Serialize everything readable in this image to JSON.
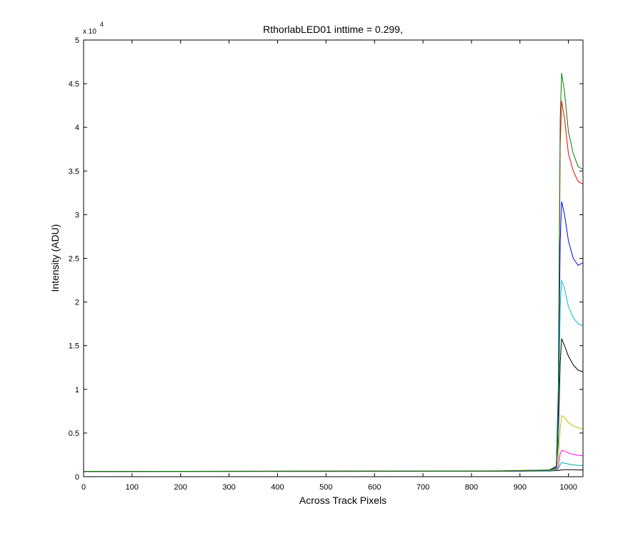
{
  "chart_data": {
    "type": "line",
    "title": "RthorlabLED01 inttime = 0.299,",
    "xlabel": "Across Track Pixels",
    "ylabel": "Intensity (ADU)",
    "y_exponent_label": "x 10",
    "y_exponent_power": "4",
    "xlim": [
      0,
      1030
    ],
    "ylim": [
      0,
      50000
    ],
    "x_ticks": [
      0,
      100,
      200,
      300,
      400,
      500,
      600,
      700,
      800,
      900,
      1000
    ],
    "x_tick_labels": [
      "0",
      "100",
      "200",
      "300",
      "400",
      "500",
      "600",
      "700",
      "800",
      "900",
      "1000"
    ],
    "y_ticks": [
      0,
      5000,
      10000,
      15000,
      20000,
      25000,
      30000,
      35000,
      40000,
      45000,
      50000
    ],
    "y_tick_labels": [
      "0",
      "0.5",
      "1",
      "1.5",
      "2",
      "2.5",
      "3",
      "3.5",
      "4",
      "4.5",
      "5"
    ],
    "grid": false,
    "legend": "none",
    "baseline": 600,
    "series": [
      {
        "color": "#000000",
        "x": [
          0,
          850,
          960,
          975,
          979,
          983,
          986,
          992,
          1000,
          1010,
          1020,
          1030
        ],
        "y": [
          600,
          610,
          650,
          700,
          700,
          750,
          780,
          800,
          800,
          790,
          780,
          770
        ]
      },
      {
        "color": "#ff00ff",
        "x": [
          0,
          850,
          960,
          975,
          979,
          983,
          986,
          992,
          1000,
          1010,
          1020,
          1030
        ],
        "y": [
          600,
          620,
          680,
          800,
          1200,
          2600,
          3000,
          2950,
          2700,
          2550,
          2450,
          2400
        ]
      },
      {
        "color": "#00aaaa",
        "x": [
          0,
          850,
          960,
          975,
          979,
          983,
          986,
          992,
          1000,
          1010,
          1020,
          1030
        ],
        "y": [
          600,
          620,
          660,
          750,
          900,
          1400,
          1600,
          1550,
          1450,
          1350,
          1300,
          1280
        ]
      },
      {
        "color": "#c0c000",
        "x": [
          0,
          850,
          960,
          975,
          979,
          983,
          986,
          992,
          1000,
          1010,
          1020,
          1030
        ],
        "y": [
          600,
          630,
          700,
          900,
          2000,
          5500,
          7000,
          6800,
          6200,
          5800,
          5600,
          5500
        ]
      },
      {
        "color": "#000000",
        "x": [
          0,
          850,
          960,
          975,
          979,
          983,
          986,
          992,
          1000,
          1010,
          1020,
          1030
        ],
        "y": [
          600,
          640,
          720,
          1000,
          4000,
          13000,
          15800,
          15000,
          13800,
          12800,
          12200,
          12000
        ]
      },
      {
        "color": "#00bfbf",
        "x": [
          0,
          850,
          960,
          975,
          979,
          983,
          986,
          992,
          1000,
          1010,
          1020,
          1030
        ],
        "y": [
          600,
          640,
          720,
          1050,
          5000,
          19500,
          22500,
          21500,
          19500,
          18200,
          17500,
          17300
        ]
      },
      {
        "color": "#0000ff",
        "x": [
          0,
          850,
          960,
          975,
          979,
          983,
          986,
          992,
          1000,
          1010,
          1020,
          1030
        ],
        "y": [
          600,
          650,
          740,
          1100,
          7000,
          27000,
          31500,
          30000,
          27000,
          25000,
          24200,
          24500
        ]
      },
      {
        "color": "#ff0000",
        "x": [
          0,
          850,
          960,
          975,
          979,
          983,
          986,
          992,
          1000,
          1010,
          1020,
          1030
        ],
        "y": [
          600,
          650,
          750,
          1150,
          9000,
          38000,
          43000,
          41000,
          37000,
          35000,
          33800,
          33500
        ]
      },
      {
        "color": "#008000",
        "x": [
          0,
          850,
          960,
          975,
          979,
          983,
          986,
          992,
          1000,
          1010,
          1020,
          1030
        ],
        "y": [
          600,
          660,
          760,
          1200,
          10000,
          41000,
          46200,
          44000,
          39500,
          37000,
          35500,
          35200
        ]
      }
    ]
  }
}
